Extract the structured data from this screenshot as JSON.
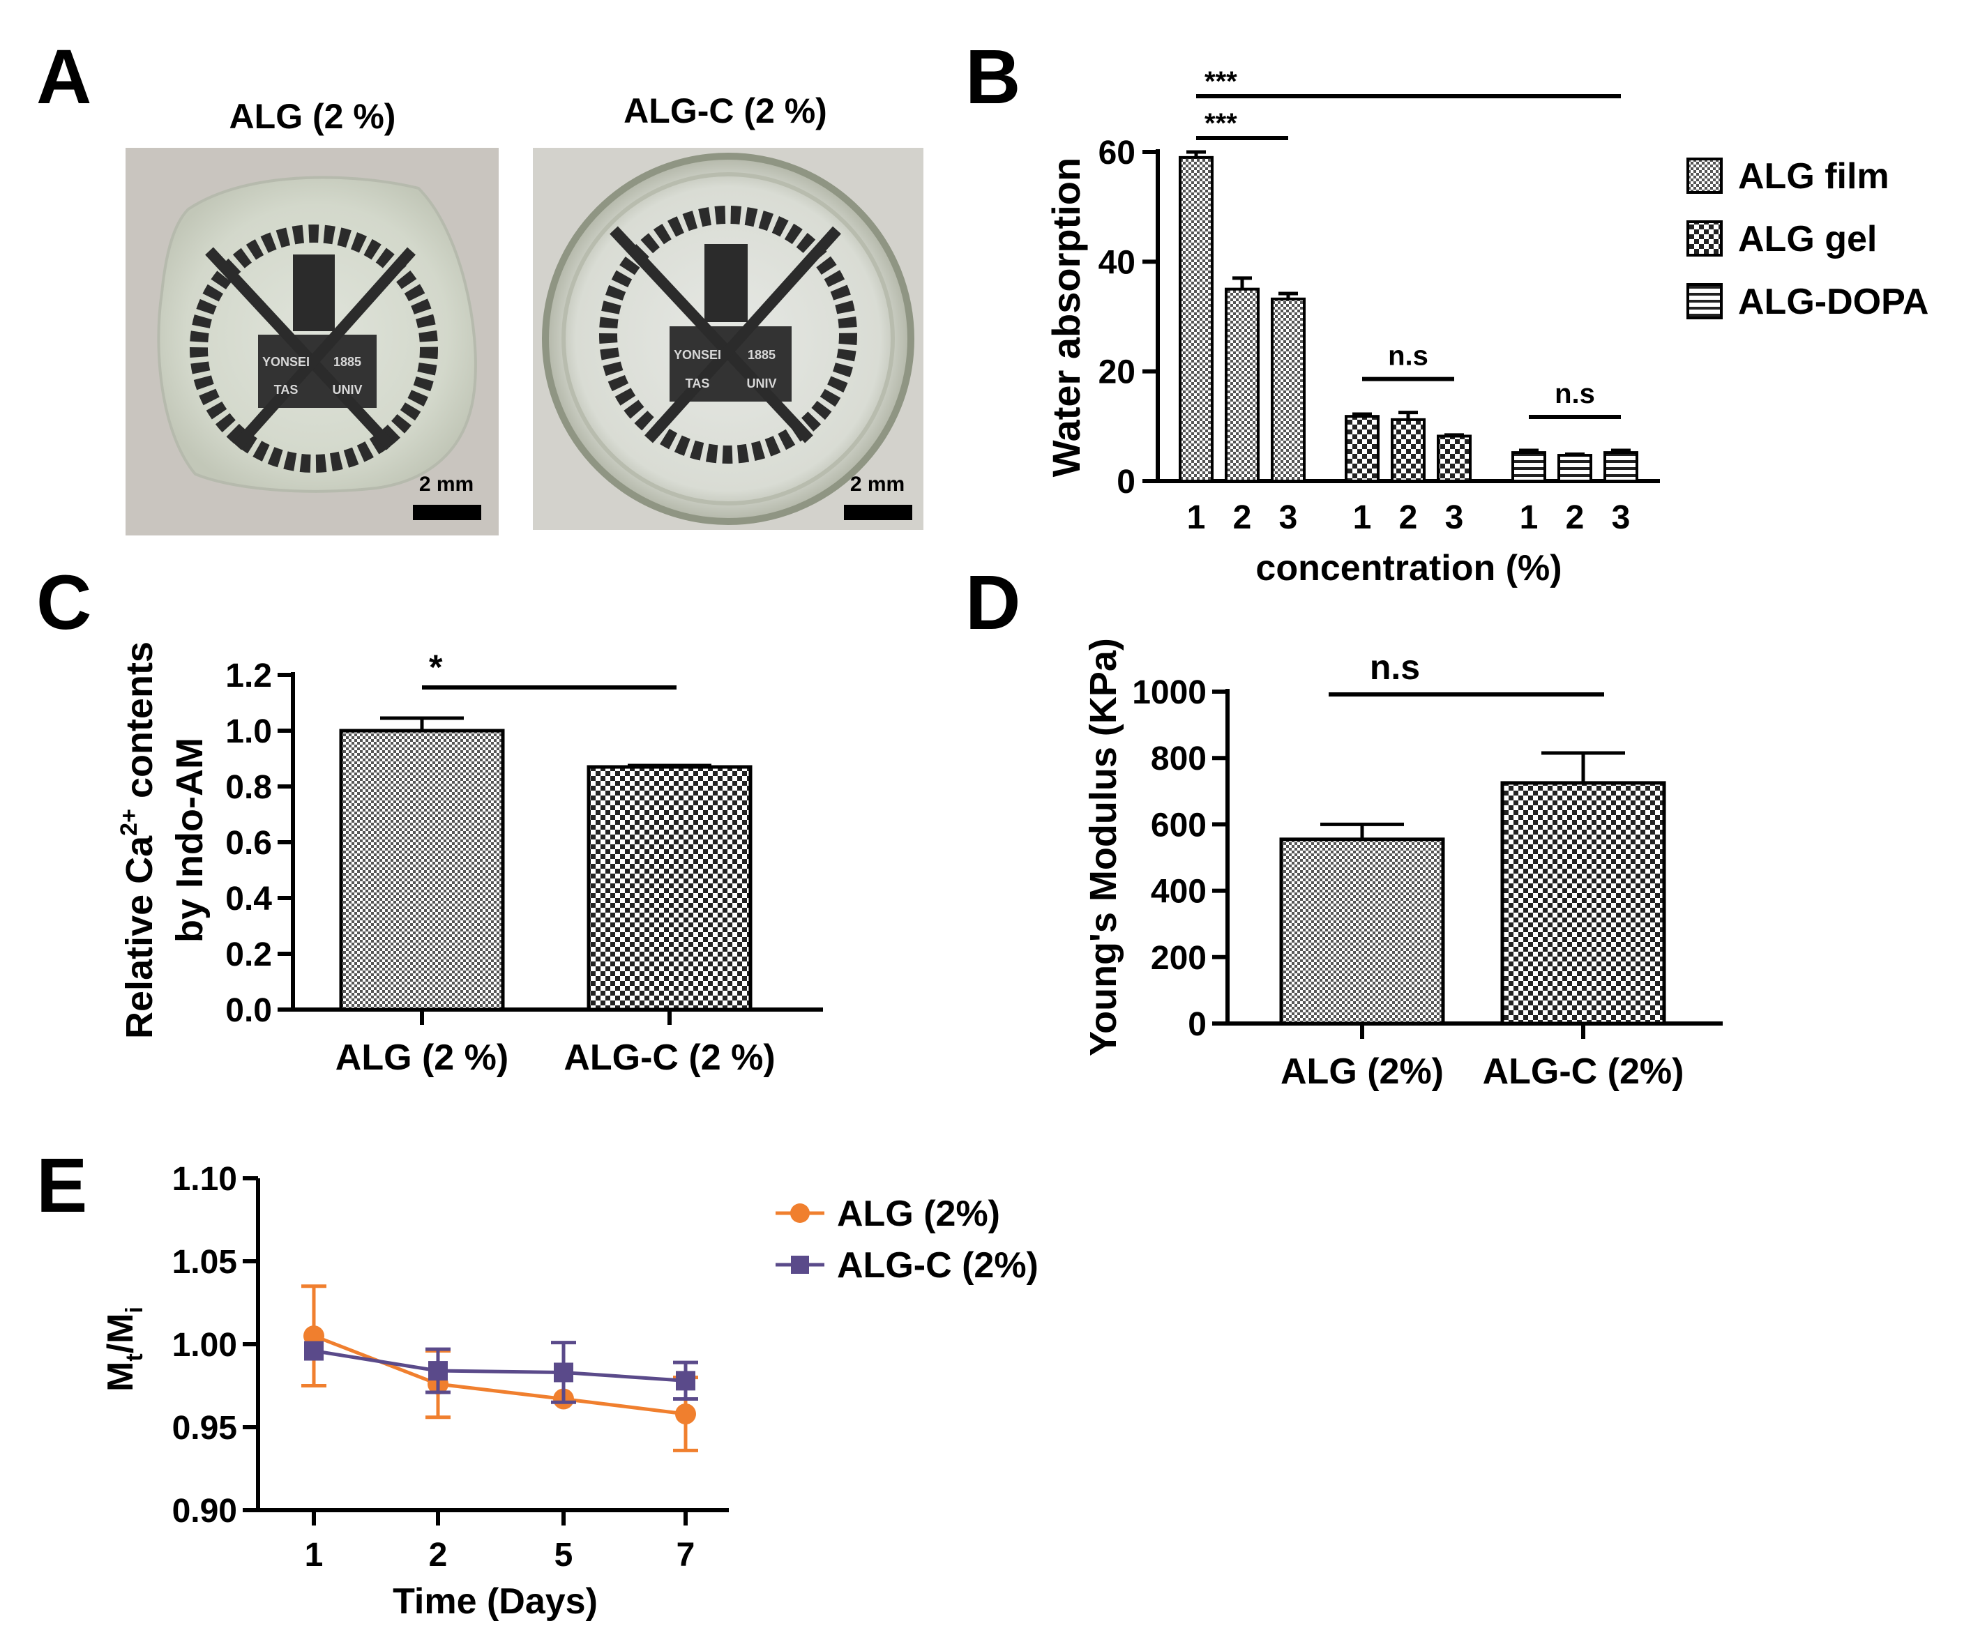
{
  "panel_labels": {
    "A": "A",
    "B": "B",
    "C": "C",
    "D": "D",
    "E": "E"
  },
  "panel_a": {
    "photos": [
      {
        "caption": "ALG (2 %)",
        "scale_label": "2 mm",
        "logo_text": [
          "YONSEI",
          "TAS",
          "UNIV",
          "1885"
        ]
      },
      {
        "caption": "ALG-C (2 %)",
        "scale_label": "2 mm",
        "logo_text": [
          "YONSEI",
          "TAS",
          "UNIV",
          "1885"
        ]
      }
    ]
  },
  "chart_data": [
    {
      "panel": "B",
      "type": "bar",
      "xlabel": "concentration (%)",
      "ylabel": "Water absorption",
      "ylim": [
        0,
        60
      ],
      "yticks": [
        0,
        20,
        40,
        60
      ],
      "categories": [
        "1",
        "2",
        "3"
      ],
      "series": [
        {
          "name": "ALG film",
          "values": [
            59,
            35,
            33.2
          ],
          "errors": [
            1,
            2,
            1
          ],
          "pattern": "fine-check"
        },
        {
          "name": "ALG gel",
          "values": [
            11.8,
            11.2,
            8.2
          ],
          "errors": [
            0.4,
            1.3,
            0.2
          ],
          "pattern": "coarse-check"
        },
        {
          "name": "ALG-DOPA",
          "values": [
            5.2,
            4.7,
            5.2
          ],
          "errors": [
            0.4,
            0.2,
            0.4
          ],
          "pattern": "hlines"
        }
      ],
      "legend": "right",
      "annotations": [
        {
          "text": "***",
          "from": [
            0,
            0
          ],
          "to": [
            2,
            2
          ],
          "level": 1
        },
        {
          "text": "***",
          "from": [
            0,
            0
          ],
          "to": [
            0,
            2
          ],
          "level": 0
        },
        {
          "text": "n.s",
          "from": [
            1,
            0
          ],
          "to": [
            1,
            2
          ],
          "level": 0
        },
        {
          "text": "n.s",
          "from": [
            2,
            0
          ],
          "to": [
            2,
            2
          ],
          "level": 0
        }
      ]
    },
    {
      "panel": "C",
      "type": "bar",
      "xlabel": "",
      "ylabel": [
        "Relative Ca",
        "2+",
        " contents",
        "by Indo-AM"
      ],
      "ylim": [
        0,
        1.2
      ],
      "yticks": [
        "0.0",
        "0.2",
        "0.4",
        "0.6",
        "0.8",
        "1.0",
        "1.2"
      ],
      "categories": [
        "ALG (2 %)",
        "ALG-C (2 %)"
      ],
      "values": [
        1.0,
        0.87
      ],
      "errors": [
        0.045,
        0.005
      ],
      "patterns": [
        "fine-check",
        "coarse-check"
      ],
      "annotations": [
        {
          "text": "*",
          "from": 0,
          "to": 1
        }
      ]
    },
    {
      "panel": "D",
      "type": "bar",
      "xlabel": "",
      "ylabel": "Young's Modulus (KPa)",
      "ylim": [
        0,
        1000
      ],
      "yticks": [
        "0",
        "200",
        "400",
        "600",
        "800",
        "1000"
      ],
      "categories": [
        "ALG (2%)",
        "ALG-C (2%)"
      ],
      "values": [
        555,
        725
      ],
      "errors": [
        45,
        90
      ],
      "patterns": [
        "fine-check",
        "coarse-check"
      ],
      "annotations": [
        {
          "text": "n.s",
          "from": 0,
          "to": 1
        }
      ]
    },
    {
      "panel": "E",
      "type": "line",
      "xlabel": "Time (Days)",
      "ylabel": [
        "M",
        "t",
        "/M",
        "i"
      ],
      "ylim": [
        0.9,
        1.1
      ],
      "yticks": [
        "0.90",
        "0.95",
        "1.00",
        "1.05",
        "1.10"
      ],
      "categories": [
        "1",
        "2",
        "5",
        "7"
      ],
      "series": [
        {
          "name": "ALG (2%)",
          "values": [
            1.005,
            0.976,
            0.967,
            0.958
          ],
          "errors": [
            0.03,
            0.02,
            0.0,
            0.022
          ],
          "color": "#f07f2e",
          "marker": "circle"
        },
        {
          "name": "ALG-C (2%)",
          "values": [
            0.996,
            0.984,
            0.983,
            0.978
          ],
          "errors": [
            0.0,
            0.013,
            0.018,
            0.011
          ],
          "color": "#5a4a8a",
          "marker": "square"
        }
      ],
      "legend": "right"
    }
  ]
}
